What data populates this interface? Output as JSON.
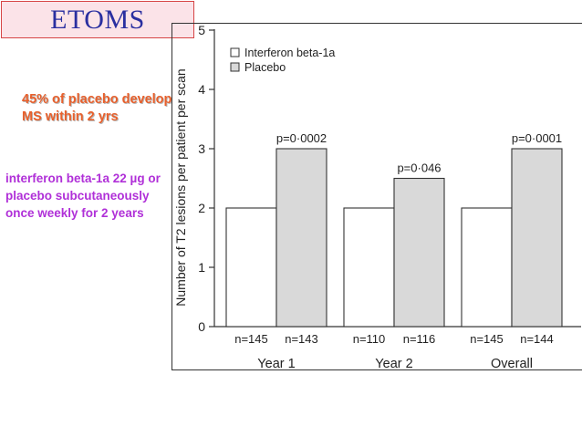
{
  "slide": {
    "title": "ETOMS",
    "highlight_note": "45% of placebo develop MS within 2 yrs",
    "method_note": "interferon beta-1a 22 µg or placebo subcutaneously once weekly for 2 years",
    "colors": {
      "title_text": "#2a2fa0",
      "title_bg": "#fbe3e8",
      "title_border": "#d64545",
      "highlight_note": "#e8602c",
      "method_note": "#b030d8",
      "placebo_bar": "#d9d9d9",
      "interferon_bar": "#ffffff"
    }
  },
  "chart_data": {
    "type": "bar",
    "ylabel": "Number of T2 lesions per patient per scan",
    "ylim": [
      0,
      5
    ],
    "yticks": [
      "0",
      "1",
      "2",
      "3",
      "4",
      "5"
    ],
    "legend_position": "top-left",
    "categories": [
      "Year 1",
      "Year 2",
      "Overall"
    ],
    "series": [
      {
        "name": "Interferon beta-1a",
        "values": [
          2,
          2,
          2
        ],
        "n_labels": [
          "n=145",
          "n=110",
          "n=145"
        ]
      },
      {
        "name": "Placebo",
        "values": [
          3,
          2.5,
          3
        ],
        "n_labels": [
          "n=143",
          "n=116",
          "n=144"
        ]
      }
    ],
    "p_values": [
      "p=0·0002",
      "p=0·046",
      "p=0·0001"
    ]
  }
}
